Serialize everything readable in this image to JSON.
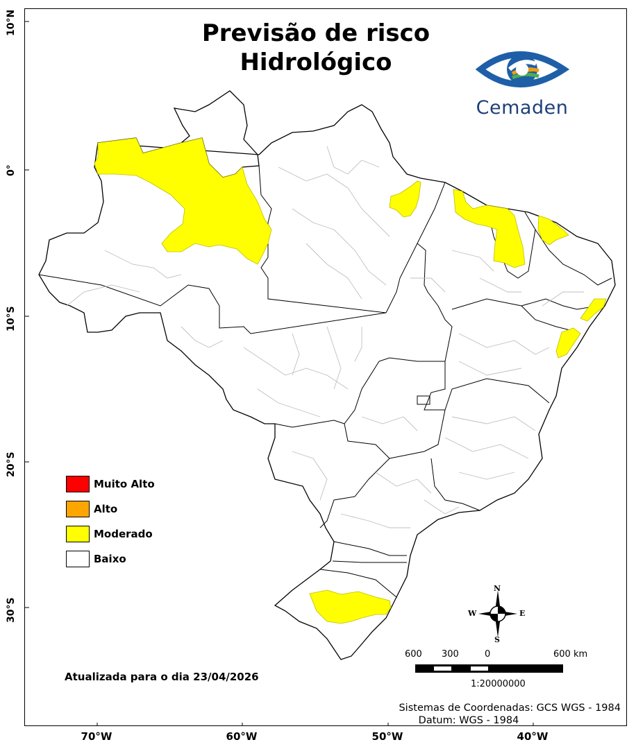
{
  "title": {
    "line1": "Previsão de risco",
    "line2": "Hidrológico"
  },
  "logo": {
    "text": "Cemaden",
    "color": "#1e3f7a"
  },
  "legend": [
    {
      "label": "Muito Alto",
      "color": "#ff0000"
    },
    {
      "label": "Alto",
      "color": "#ffa500"
    },
    {
      "label": "Moderado",
      "color": "#ffff00"
    },
    {
      "label": "Baixo",
      "color": "#ffffff"
    }
  ],
  "date_text": "Atualizada para o dia 23/04/2026",
  "coordinate_system": {
    "line1": "Sistemas de Coordenadas: GCS WGS - 1984",
    "line2": "Datum: WGS - 1984"
  },
  "scale": {
    "ticks": [
      "600",
      "300",
      "0",
      "600 km"
    ],
    "ratio": "1:20000000"
  },
  "compass": {
    "n": "N",
    "s": "S",
    "e": "E",
    "w": "W"
  },
  "latitude_labels": [
    "10°N",
    "0°",
    "10°S",
    "20°S",
    "30°S"
  ],
  "longitude_labels": [
    "70°W",
    "60°W",
    "50°W",
    "40°W"
  ]
}
